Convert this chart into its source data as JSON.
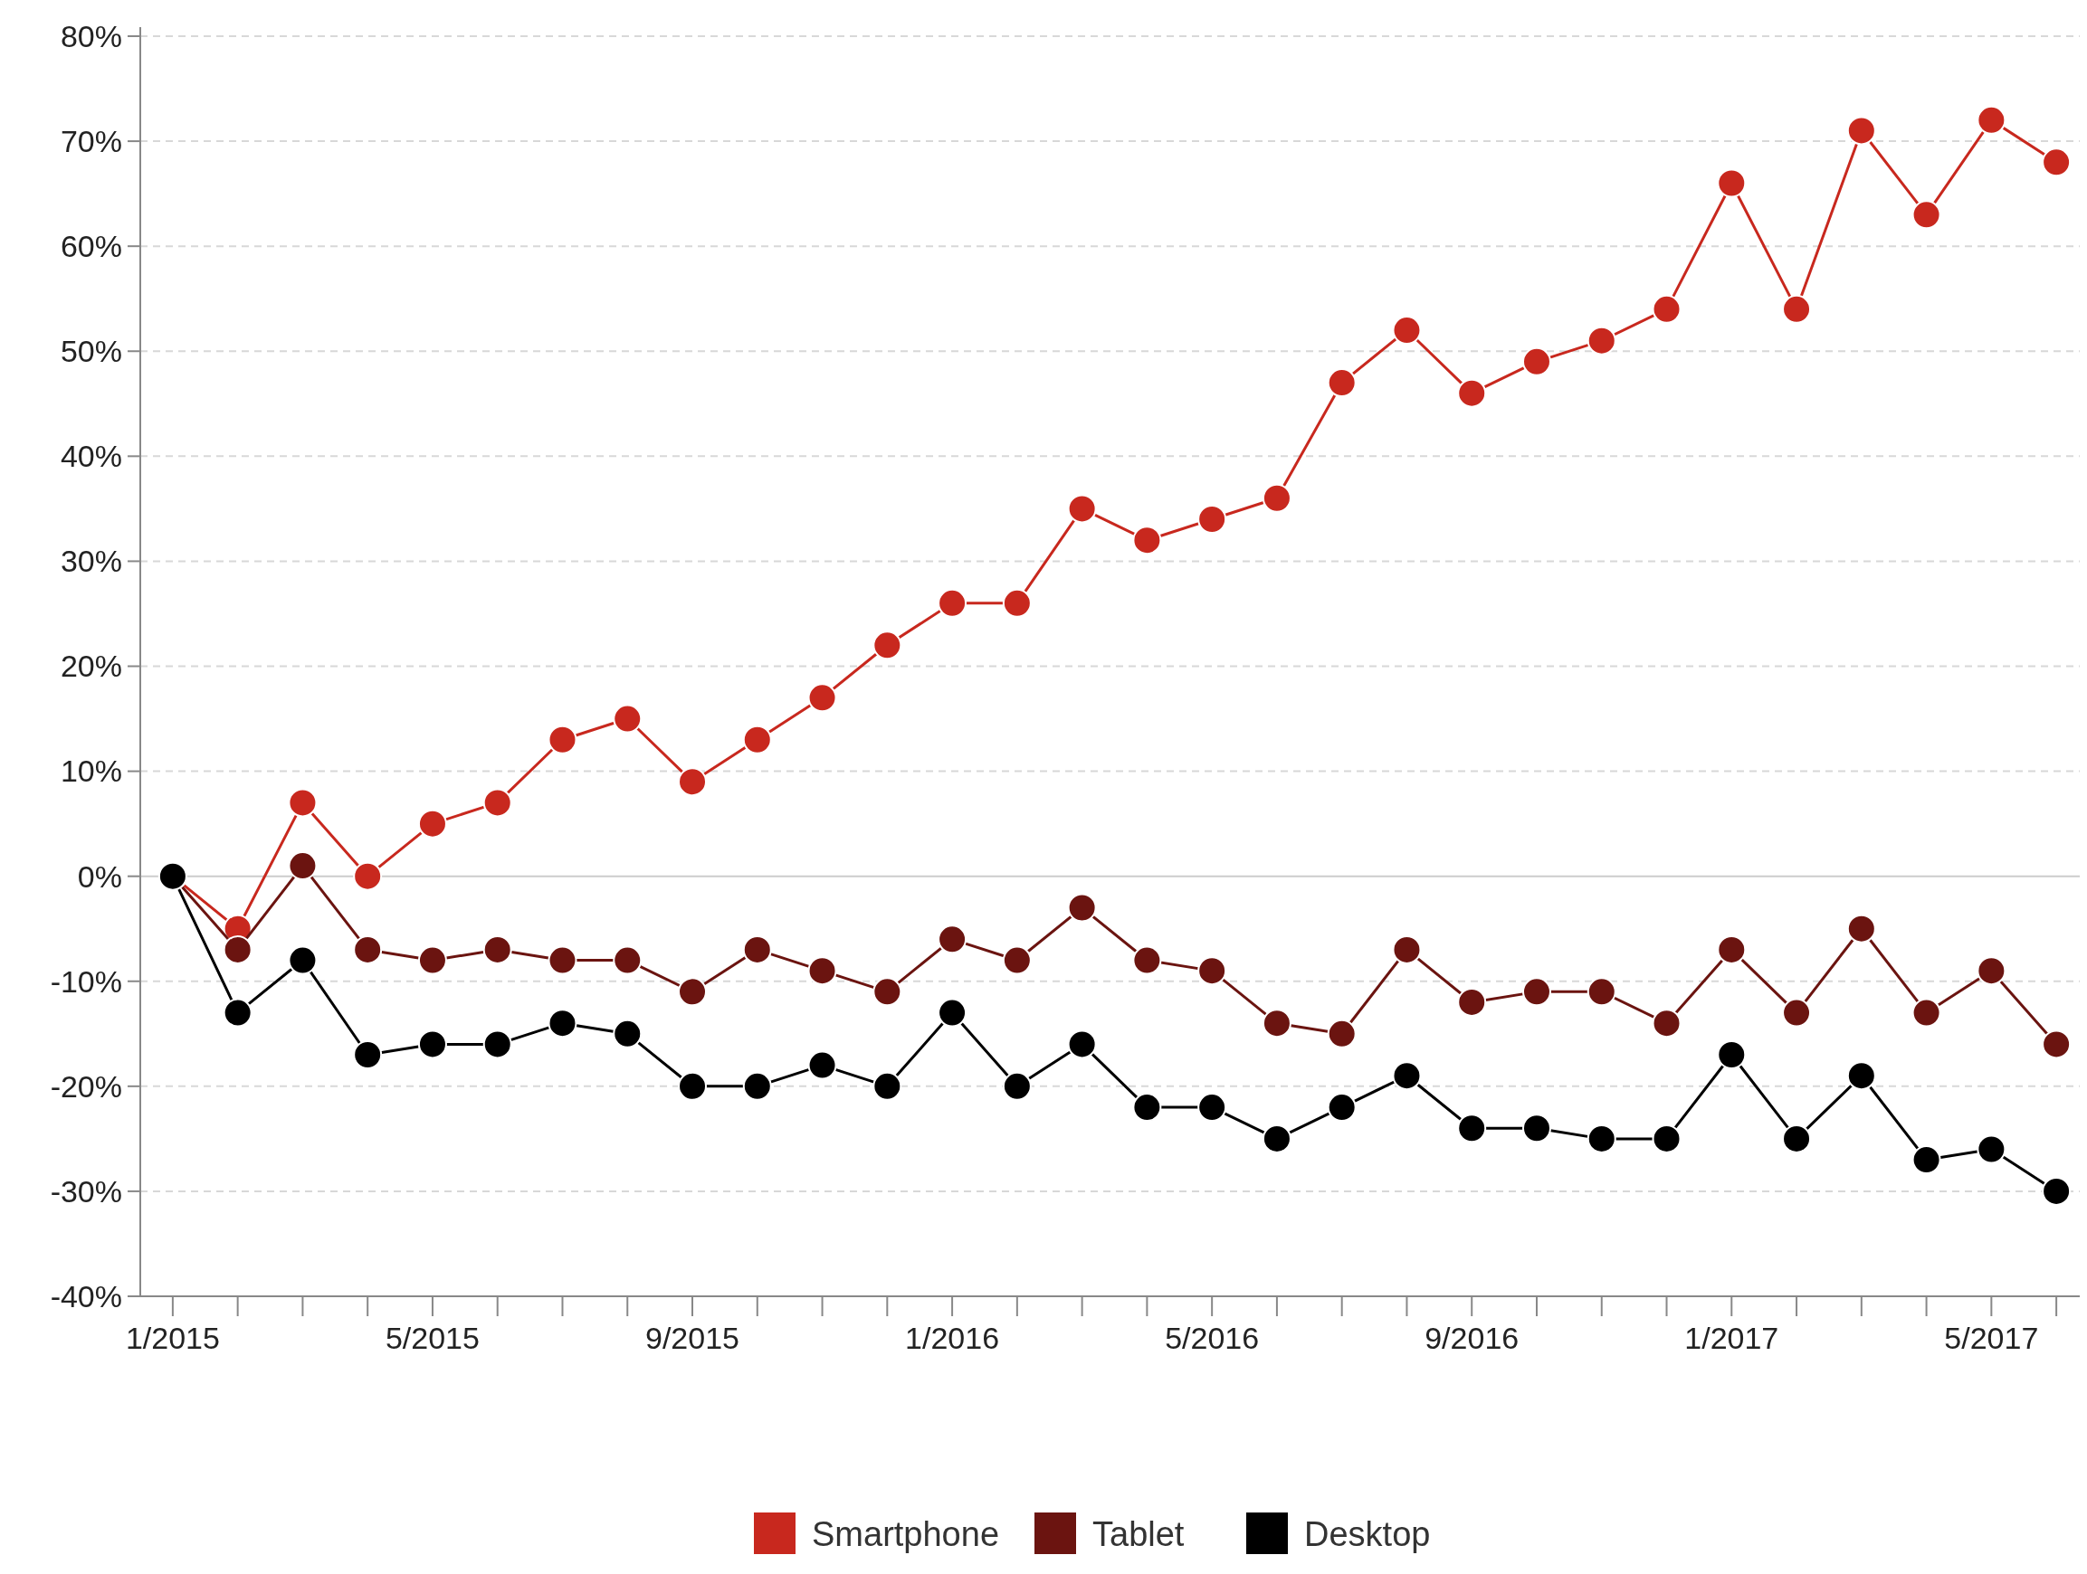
{
  "chart_data": {
    "type": "line",
    "categories": [
      "1/2015",
      null,
      null,
      null,
      "5/2015",
      null,
      null,
      null,
      "9/2015",
      null,
      null,
      null,
      "1/2016",
      null,
      null,
      null,
      "5/2016",
      null,
      null,
      null,
      "9/2016",
      null,
      null,
      null,
      "1/2017",
      null,
      null,
      null,
      "5/2017",
      null
    ],
    "series": [
      {
        "name": "Smartphone",
        "color": "#c8281e",
        "values": [
          0,
          -5,
          7,
          0,
          5,
          7,
          13,
          15,
          9,
          13,
          17,
          22,
          26,
          26,
          35,
          32,
          34,
          36,
          47,
          52,
          46,
          49,
          51,
          54,
          66,
          54,
          71,
          63,
          72,
          68
        ]
      },
      {
        "name": "Tablet",
        "color": "#6b1410",
        "values": [
          0,
          -7,
          1,
          -7,
          -8,
          -7,
          -8,
          -8,
          -11,
          -7,
          -9,
          -11,
          -6,
          -8,
          -3,
          -8,
          -9,
          -14,
          -15,
          -7,
          -12,
          -11,
          -11,
          -14,
          -7,
          -13,
          -5,
          -13,
          -9,
          -16
        ]
      },
      {
        "name": "Desktop",
        "color": "#000000",
        "values": [
          0,
          -13,
          -8,
          -17,
          -16,
          -16,
          -14,
          -15,
          -20,
          -20,
          -18,
          -20,
          -13,
          -20,
          -16,
          -22,
          -22,
          -25,
          -22,
          -19,
          -24,
          -24,
          -25,
          -25,
          -17,
          -25,
          -19,
          -27,
          -26,
          -30
        ]
      }
    ],
    "ylim": [
      -40,
      80
    ],
    "yticks": [
      {
        "value": -40,
        "label": "-40%"
      },
      {
        "value": -30,
        "label": "-30%"
      },
      {
        "value": -20,
        "label": "-20%"
      },
      {
        "value": -10,
        "label": "-10%"
      },
      {
        "value": 0,
        "label": "0%"
      },
      {
        "value": 10,
        "label": "10%"
      },
      {
        "value": 20,
        "label": "20%"
      },
      {
        "value": 30,
        "label": "30%"
      },
      {
        "value": 40,
        "label": "40%"
      },
      {
        "value": 50,
        "label": "50%"
      },
      {
        "value": 60,
        "label": "60%"
      },
      {
        "value": 70,
        "label": "70%"
      },
      {
        "value": 80,
        "label": "80%"
      }
    ],
    "grid": "y",
    "legend": "bottom",
    "marker": "circle",
    "line_style": "solid"
  }
}
